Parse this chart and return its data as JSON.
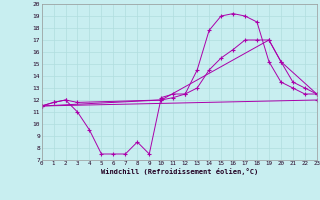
{
  "bg_color": "#c8eef0",
  "line_color": "#aa00aa",
  "xlabel": "Windchill (Refroidissement éolien,°C)",
  "xlim": [
    0,
    23
  ],
  "ylim": [
    7,
    20
  ],
  "xticks": [
    0,
    1,
    2,
    3,
    4,
    5,
    6,
    7,
    8,
    9,
    10,
    11,
    12,
    13,
    14,
    15,
    16,
    17,
    18,
    19,
    20,
    21,
    22,
    23
  ],
  "yticks": [
    7,
    8,
    9,
    10,
    11,
    12,
    13,
    14,
    15,
    16,
    17,
    18,
    19,
    20
  ],
  "lines": [
    {
      "x": [
        0,
        23
      ],
      "y": [
        11.5,
        12.0
      ]
    },
    {
      "x": [
        0,
        1,
        2,
        3,
        10,
        11,
        12,
        13,
        14,
        15,
        16,
        17,
        18,
        19,
        20,
        21,
        22,
        23
      ],
      "y": [
        11.5,
        11.8,
        12.0,
        11.8,
        12.0,
        12.2,
        12.5,
        13.0,
        14.5,
        15.5,
        16.2,
        17.0,
        17.0,
        17.0,
        15.2,
        13.5,
        13.0,
        12.5
      ]
    },
    {
      "x": [
        0,
        1,
        2,
        3,
        4,
        5,
        6,
        7,
        8,
        9,
        10,
        11,
        12,
        13,
        14,
        15,
        16,
        17,
        18,
        19,
        20,
        21,
        22,
        23
      ],
      "y": [
        11.5,
        11.8,
        12.0,
        11.0,
        9.5,
        7.5,
        7.5,
        7.5,
        8.5,
        7.5,
        12.2,
        12.5,
        12.5,
        14.5,
        17.8,
        19.0,
        19.2,
        19.0,
        18.5,
        15.2,
        13.5,
        13.0,
        12.5,
        12.5
      ]
    },
    {
      "x": [
        0,
        10,
        19,
        20,
        23
      ],
      "y": [
        11.5,
        12.0,
        17.0,
        15.2,
        12.5
      ]
    }
  ]
}
